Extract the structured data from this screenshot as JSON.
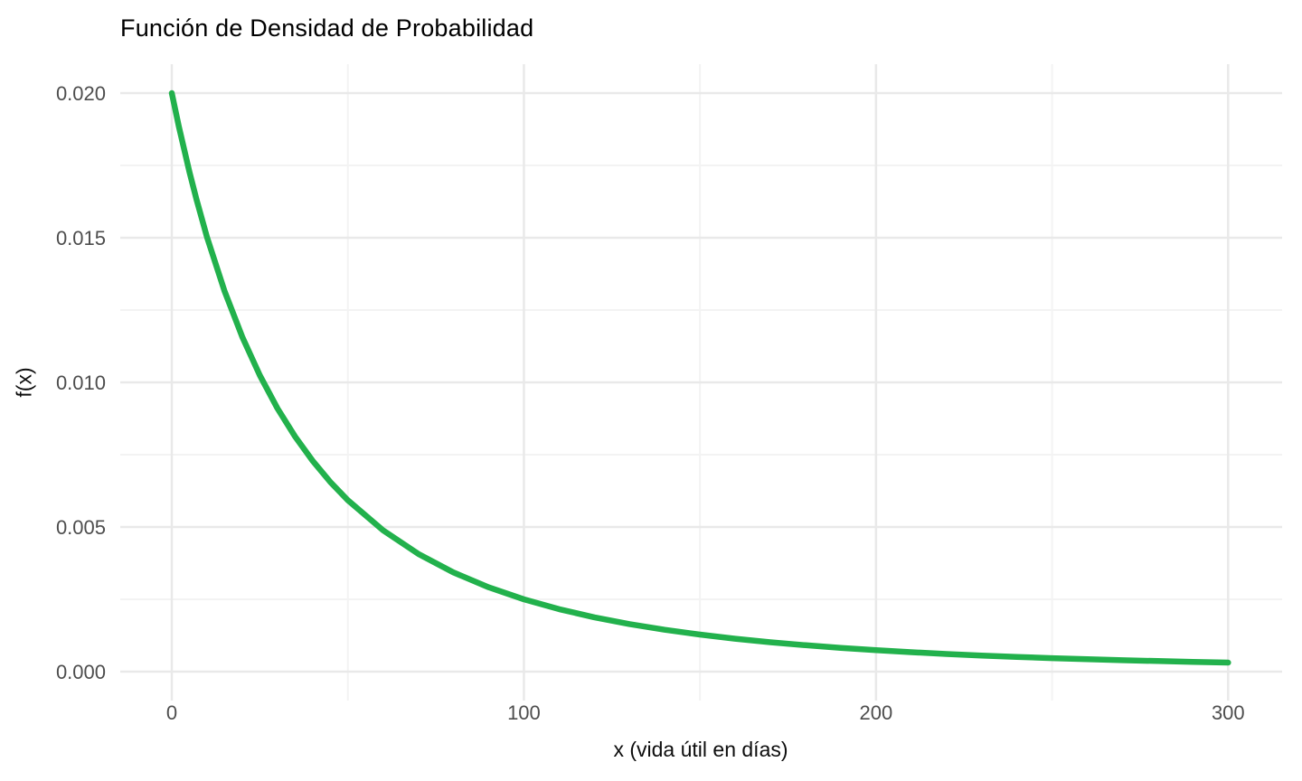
{
  "chart_data": {
    "type": "line",
    "title": "Función de Densidad de Probabilidad",
    "xlabel": "x (vida útil en días)",
    "ylabel": "f(x)",
    "xlim": [
      0,
      300
    ],
    "ylim": [
      0,
      0.02
    ],
    "x_ticks": [
      {
        "value": 0,
        "label": "0"
      },
      {
        "value": 100,
        "label": "100"
      },
      {
        "value": 200,
        "label": "200"
      },
      {
        "value": 300,
        "label": "300"
      }
    ],
    "y_ticks": [
      {
        "value": 0.0,
        "label": "0.000"
      },
      {
        "value": 0.005,
        "label": "0.005"
      },
      {
        "value": 0.01,
        "label": "0.010"
      },
      {
        "value": 0.015,
        "label": "0.015"
      },
      {
        "value": 0.02,
        "label": "0.020"
      }
    ],
    "x_minor": [
      50,
      150,
      250
    ],
    "y_minor": [
      0.0025,
      0.0075,
      0.0125,
      0.0175
    ],
    "grid": "major+minor",
    "legend_position": "none",
    "series": [
      {
        "name": "f(x)",
        "color": "#22B14C",
        "points": [
          [
            0,
            0.02
          ],
          [
            2,
            0.018847
          ],
          [
            5,
            0.017277
          ],
          [
            7,
            0.016326
          ],
          [
            10,
            0.015026
          ],
          [
            15,
            0.01315
          ],
          [
            20,
            0.011574
          ],
          [
            25,
            0.01024
          ],
          [
            30,
            0.009103
          ],
          [
            35,
            0.008129
          ],
          [
            40,
            0.007289
          ],
          [
            45,
            0.00656
          ],
          [
            50,
            0.005926
          ],
          [
            60,
            0.004883
          ],
          [
            70,
            0.004071
          ],
          [
            80,
            0.003429
          ],
          [
            90,
            0.002916
          ],
          [
            100,
            0.0025
          ],
          [
            110,
            0.00216
          ],
          [
            120,
            0.001878
          ],
          [
            130,
            0.001644
          ],
          [
            140,
            0.001447
          ],
          [
            150,
            0.00128
          ],
          [
            160,
            0.001138
          ],
          [
            170,
            0.001016
          ],
          [
            180,
            0.000911
          ],
          [
            190,
            0.00082
          ],
          [
            200,
            0.000741
          ],
          [
            210,
            0.000671
          ],
          [
            220,
            0.00061
          ],
          [
            230,
            0.000556
          ],
          [
            240,
            0.000509
          ],
          [
            250,
            0.000467
          ],
          [
            260,
            0.000429
          ],
          [
            270,
            0.000395
          ],
          [
            280,
            0.000365
          ],
          [
            290,
            0.000337
          ],
          [
            300,
            0.000313
          ]
        ]
      }
    ]
  },
  "style": {
    "background": "#FFFFFF",
    "line_color": "#22B14C",
    "line_width": 6.5,
    "grid_major_color": "#E9E9E9",
    "grid_minor_color": "#F3F3F3",
    "tick_label_color": "#4D4D4D",
    "title_color": "#000000",
    "axis_title_color": "#0D0D0D"
  }
}
